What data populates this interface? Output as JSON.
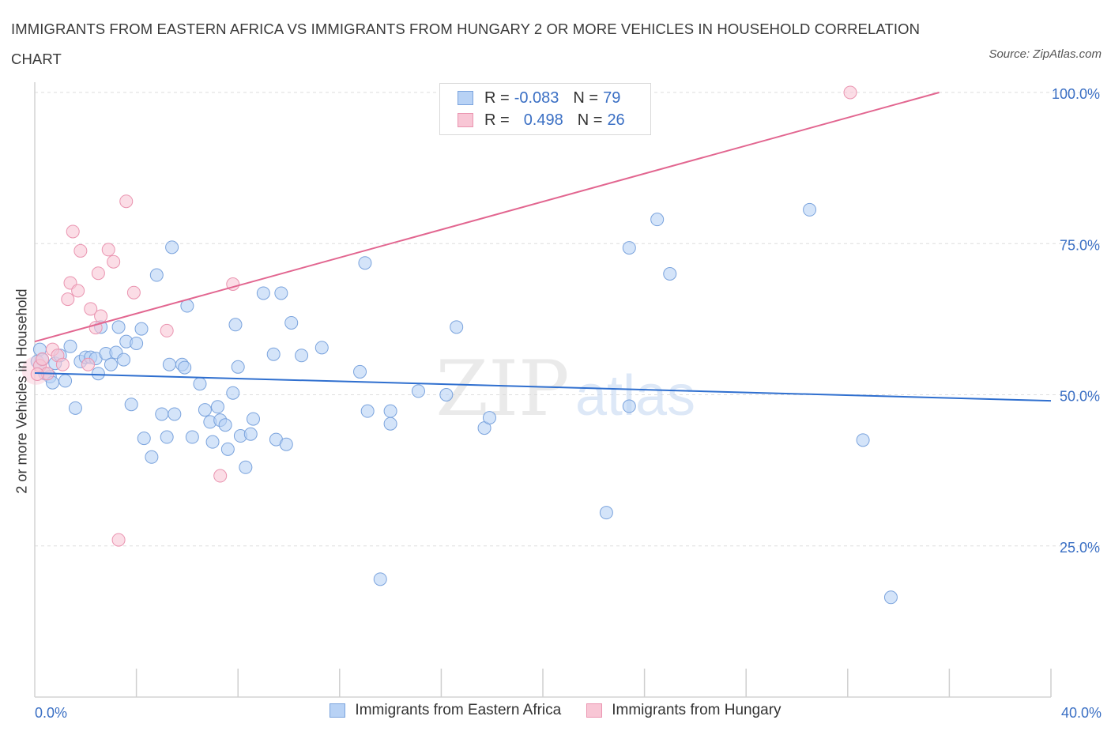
{
  "title": "IMMIGRANTS FROM EASTERN AFRICA VS IMMIGRANTS FROM HUNGARY 2 OR MORE VEHICLES IN HOUSEHOLD CORRELATION CHART",
  "source": "Source: ZipAtlas.com",
  "watermark": {
    "zip": "ZIP",
    "atlas": "atlas"
  },
  "legend_top": [
    {
      "r_label": "R =",
      "r_value": "-0.083",
      "n_label": "N =",
      "n_value": "79"
    },
    {
      "r_label": "R =",
      "r_value": "0.498",
      "n_label": "N =",
      "n_value": "26"
    }
  ],
  "chart_data": {
    "type": "scatter",
    "title": "IMMIGRANTS FROM EASTERN AFRICA VS IMMIGRANTS FROM HUNGARY 2 OR MORE VEHICLES IN HOUSEHOLD CORRELATION CHART",
    "xlabel": "",
    "ylabel": "2 or more Vehicles in Household",
    "xlim": [
      0,
      40
    ],
    "ylim": [
      0,
      100
    ],
    "x_tick_labels": [
      "0.0%",
      "40.0%"
    ],
    "y_ticks": [
      25,
      50,
      75,
      100
    ],
    "y_tick_labels": [
      "25.0%",
      "50.0%",
      "75.0%",
      "100.0%"
    ],
    "grid": true,
    "legend_position": "bottom",
    "colors": {
      "eastern_africa_fill": "#b8d2f5",
      "eastern_africa_stroke": "#7aa3dd",
      "eastern_africa_line": "#2f6fcf",
      "hungary_fill": "#f8c6d5",
      "hungary_stroke": "#ea94b0",
      "hungary_line": "#e26690",
      "tick_label": "#3a6fc4"
    },
    "series": [
      {
        "name": "Immigrants from Eastern Africa",
        "trend": {
          "x0": 0,
          "y0": 53.6,
          "x1": 40,
          "y1": 49.0
        },
        "points": [
          [
            0.1,
            55.5
          ],
          [
            0.2,
            57.5
          ],
          [
            0.3,
            55.8
          ],
          [
            0.4,
            53.5
          ],
          [
            0.6,
            53.0
          ],
          [
            0.7,
            52.0
          ],
          [
            0.8,
            55.2
          ],
          [
            1.0,
            56.5
          ],
          [
            1.2,
            52.3
          ],
          [
            1.4,
            58.0
          ],
          [
            1.6,
            47.8
          ],
          [
            1.8,
            55.5
          ],
          [
            2.0,
            56.2
          ],
          [
            2.2,
            56.2
          ],
          [
            2.4,
            56.0
          ],
          [
            2.5,
            53.5
          ],
          [
            2.6,
            61.2
          ],
          [
            2.8,
            56.8
          ],
          [
            3.0,
            55.0
          ],
          [
            3.2,
            57.0
          ],
          [
            3.3,
            61.2
          ],
          [
            3.5,
            55.8
          ],
          [
            3.6,
            58.8
          ],
          [
            3.8,
            48.4
          ],
          [
            4.0,
            58.5
          ],
          [
            4.2,
            60.9
          ],
          [
            4.3,
            42.8
          ],
          [
            4.6,
            39.7
          ],
          [
            4.8,
            69.8
          ],
          [
            5.0,
            46.8
          ],
          [
            5.2,
            43.0
          ],
          [
            5.3,
            55.0
          ],
          [
            5.4,
            74.4
          ],
          [
            5.5,
            46.8
          ],
          [
            5.8,
            55.0
          ],
          [
            5.9,
            54.5
          ],
          [
            6.0,
            64.7
          ],
          [
            6.2,
            43.0
          ],
          [
            6.5,
            51.8
          ],
          [
            6.7,
            47.5
          ],
          [
            6.9,
            45.5
          ],
          [
            7.0,
            42.2
          ],
          [
            7.2,
            48.0
          ],
          [
            7.3,
            45.8
          ],
          [
            7.5,
            45.0
          ],
          [
            7.6,
            41.0
          ],
          [
            7.8,
            50.3
          ],
          [
            7.9,
            61.6
          ],
          [
            8.0,
            54.6
          ],
          [
            8.1,
            43.2
          ],
          [
            8.3,
            38.0
          ],
          [
            8.5,
            43.5
          ],
          [
            8.6,
            46.0
          ],
          [
            9.0,
            66.8
          ],
          [
            9.4,
            56.7
          ],
          [
            9.5,
            42.6
          ],
          [
            9.7,
            66.8
          ],
          [
            9.9,
            41.8
          ],
          [
            10.1,
            61.9
          ],
          [
            10.5,
            56.5
          ],
          [
            11.3,
            57.8
          ],
          [
            12.8,
            53.8
          ],
          [
            13.0,
            71.8
          ],
          [
            13.1,
            47.3
          ],
          [
            13.6,
            19.5
          ],
          [
            14.0,
            47.3
          ],
          [
            14.0,
            45.2
          ],
          [
            15.1,
            50.6
          ],
          [
            16.2,
            50.0
          ],
          [
            16.6,
            61.2
          ],
          [
            17.7,
            44.5
          ],
          [
            17.9,
            46.2
          ],
          [
            22.5,
            30.5
          ],
          [
            23.4,
            74.3
          ],
          [
            23.4,
            48.1
          ],
          [
            24.5,
            79.0
          ],
          [
            25.0,
            70.0
          ],
          [
            30.5,
            80.6
          ],
          [
            32.6,
            42.5
          ],
          [
            33.7,
            16.5
          ]
        ]
      },
      {
        "name": "Immigrants from Hungary",
        "trend": {
          "x0": 0,
          "y0": 58.8,
          "x1": 35.6,
          "y1": 100
        },
        "points": [
          [
            0.2,
            54.8
          ],
          [
            0.5,
            53.5
          ],
          [
            0.7,
            57.5
          ],
          [
            0.9,
            56.5
          ],
          [
            1.1,
            55.0
          ],
          [
            1.3,
            65.8
          ],
          [
            1.4,
            68.5
          ],
          [
            1.5,
            77.0
          ],
          [
            1.7,
            67.2
          ],
          [
            1.8,
            73.8
          ],
          [
            2.1,
            55.0
          ],
          [
            2.2,
            64.2
          ],
          [
            2.4,
            61.1
          ],
          [
            2.5,
            70.1
          ],
          [
            2.6,
            63.0
          ],
          [
            2.9,
            74.0
          ],
          [
            3.1,
            72.0
          ],
          [
            3.3,
            26.0
          ],
          [
            3.6,
            82.0
          ],
          [
            3.9,
            66.9
          ],
          [
            5.2,
            60.6
          ],
          [
            7.3,
            36.6
          ],
          [
            7.8,
            68.3
          ],
          [
            32.1,
            100.0
          ],
          [
            0.1,
            53.4
          ],
          [
            0.3,
            55.9
          ]
        ]
      }
    ]
  },
  "bottom_legend": [
    {
      "label": "Immigrants from Eastern Africa"
    },
    {
      "label": "Immigrants from Hungary"
    }
  ]
}
